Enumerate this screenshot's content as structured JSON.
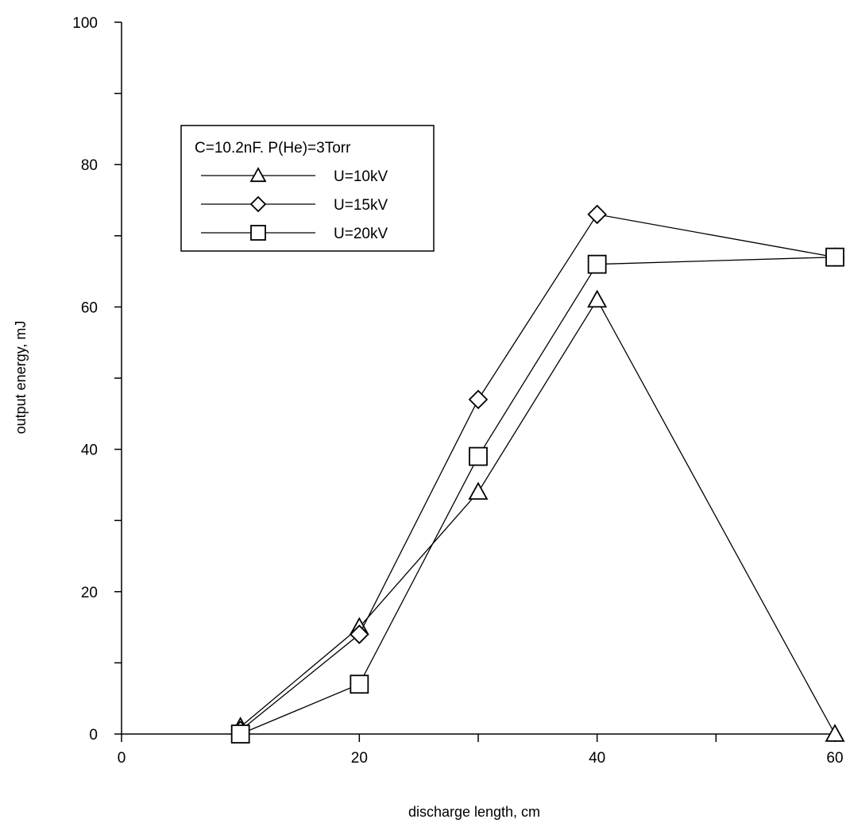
{
  "chart_data": {
    "type": "line",
    "title": "",
    "xlabel": "discharge length, cm",
    "ylabel": "output energy, mJ",
    "xlim": [
      0,
      60
    ],
    "ylim": [
      0,
      100
    ],
    "x_ticks": [
      0,
      20,
      40,
      60
    ],
    "y_ticks": [
      0,
      20,
      40,
      60,
      80,
      100
    ],
    "x_minor_ticks": [
      10,
      30,
      50
    ],
    "y_minor_ticks": [
      10,
      30,
      50,
      70,
      90
    ],
    "grid": false,
    "legend_position": "upper-left",
    "legend_title": "C=10.2nF. P(He)=3Torr",
    "series": [
      {
        "name": "U=10kV",
        "marker": "triangle",
        "x": [
          10,
          20,
          30,
          40,
          60
        ],
        "y": [
          1,
          15,
          34,
          61,
          0
        ]
      },
      {
        "name": "U=15kV",
        "marker": "diamond",
        "x": [
          10,
          20,
          30,
          40,
          60
        ],
        "y": [
          0.5,
          14,
          47,
          73,
          67
        ]
      },
      {
        "name": "U=20kV",
        "marker": "square",
        "x": [
          10,
          20,
          30,
          40,
          60
        ],
        "y": [
          0,
          7,
          39,
          66,
          67
        ]
      }
    ]
  }
}
